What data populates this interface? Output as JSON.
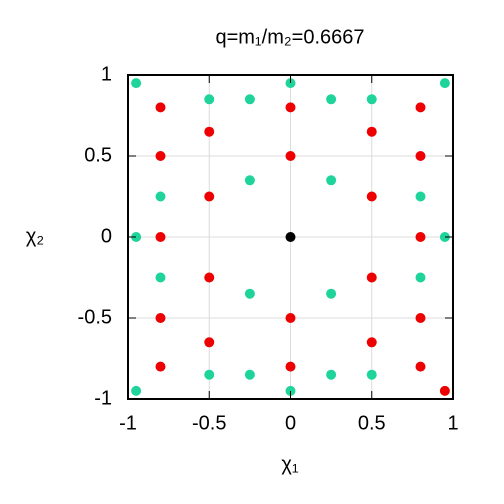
{
  "chart_data": {
    "type": "scatter",
    "title": "q=m₁/m₂=0.6667",
    "x_label": "χ₁",
    "y_label": "χ₂",
    "xlim": [
      -1,
      1
    ],
    "ylim": [
      -1,
      1
    ],
    "xticks": [
      -1,
      -0.5,
      0,
      0.5,
      1
    ],
    "yticks": [
      -1,
      -0.5,
      0,
      0.5,
      1
    ],
    "grid": true,
    "series": [
      {
        "color": "#1ed49a",
        "x": [
          -0.95,
          0,
          0.95,
          -0.5,
          -0.25,
          0.25,
          0.5,
          -0.25,
          0.25,
          -0.8,
          0.8,
          -0.95,
          0.95,
          -0.8,
          0.8,
          -0.25,
          0.25,
          -0.5,
          -0.25,
          0.25,
          0.5,
          -0.95,
          0
        ],
        "y": [
          0.95,
          0.95,
          0.95,
          0.85,
          0.85,
          0.85,
          0.85,
          0.35,
          0.35,
          0.25,
          0.25,
          0,
          0,
          -0.25,
          -0.25,
          -0.35,
          -0.35,
          -0.85,
          -0.85,
          -0.85,
          -0.85,
          -0.95,
          -0.95
        ]
      },
      {
        "color": "#ee0000",
        "x": [
          -0.8,
          0,
          0.8,
          -0.5,
          0.5,
          -0.8,
          0,
          0.8,
          -0.5,
          0.5,
          -0.8,
          0.8,
          -0.5,
          0.5,
          -0.8,
          0,
          0.8,
          -0.5,
          0.5,
          -0.8,
          0,
          0.8,
          0.95
        ],
        "y": [
          0.8,
          0.8,
          0.8,
          0.65,
          0.65,
          0.5,
          0.5,
          0.5,
          0.25,
          0.25,
          0,
          0,
          -0.25,
          -0.25,
          -0.5,
          -0.5,
          -0.5,
          -0.65,
          -0.65,
          -0.8,
          -0.8,
          -0.8,
          -0.95
        ]
      },
      {
        "color": "#000000",
        "x": [
          0
        ],
        "y": [
          0
        ]
      }
    ]
  }
}
